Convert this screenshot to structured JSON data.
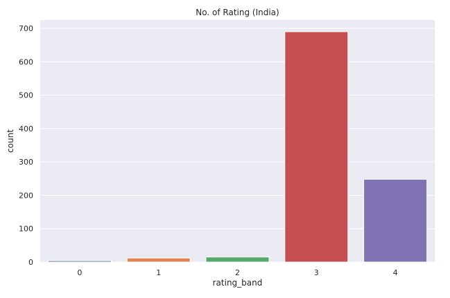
{
  "chart_data": {
    "type": "bar",
    "title": "No. of Rating (India)",
    "xlabel": "rating_band",
    "ylabel": "count",
    "categories": [
      "0",
      "1",
      "2",
      "3",
      "4"
    ],
    "values": [
      4,
      12,
      15,
      690,
      248
    ],
    "ylim": [
      0,
      725
    ],
    "yticks": [
      0,
      100,
      200,
      300,
      400,
      500,
      600,
      700
    ],
    "grid": true,
    "colors": [
      "#4c72b0",
      "#dd8452",
      "#55a868",
      "#c44e52",
      "#8172b3"
    ],
    "background_color": "#eaeaf2",
    "grid_color": "#ffffff"
  }
}
